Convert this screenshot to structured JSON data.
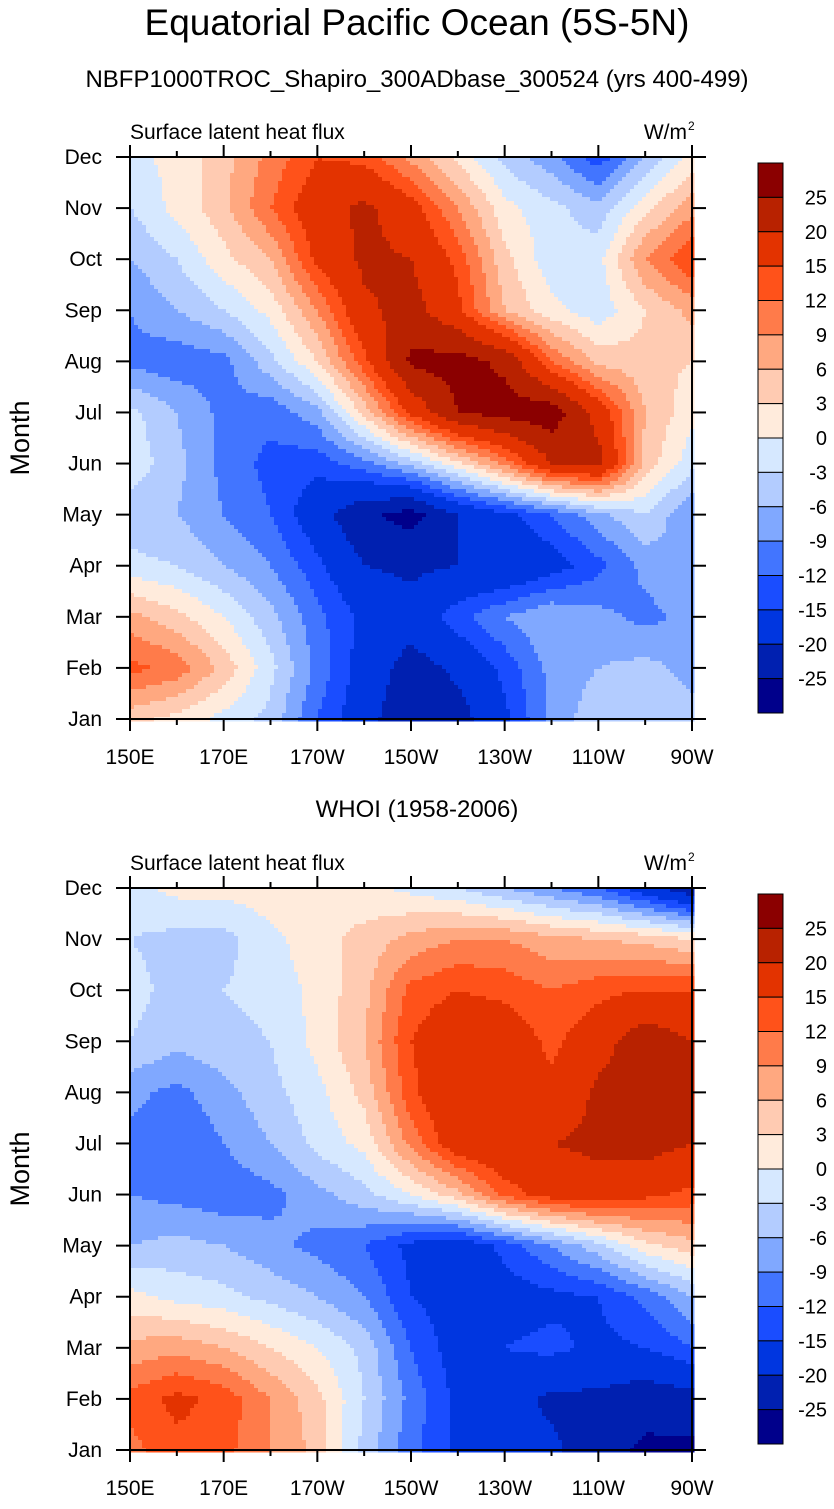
{
  "main_title": "Equatorial Pacific Ocean (5S-5N)",
  "chart_data": [
    {
      "type": "heatmap",
      "subtitle": "NBFP1000TROC_Shapiro_300ADbase_300524 (yrs 400-499)",
      "left_label": "Surface latent heat flux",
      "right_label": "W/m",
      "right_label_sup": "2",
      "ylabel": "Month",
      "xlabel": "",
      "x_ticks": [
        "150E",
        "170E",
        "170W",
        "150W",
        "130W",
        "110W",
        "90W"
      ],
      "y_ticks": [
        "Jan",
        "Feb",
        "Mar",
        "Apr",
        "May",
        "Jun",
        "Jul",
        "Aug",
        "Sep",
        "Oct",
        "Nov",
        "Dec"
      ],
      "x_lon": [
        150,
        160,
        170,
        180,
        190,
        200,
        210,
        220,
        230,
        240,
        250,
        260,
        270
      ],
      "values": [
        [
          4,
          2,
          -1,
          -4,
          -12,
          -18,
          -24,
          -22,
          -16,
          -8,
          -4,
          -3,
          -5
        ],
        [
          13,
          11,
          5,
          -2,
          -10,
          -17,
          -22,
          -19,
          -14,
          -8,
          -6,
          -5,
          -7
        ],
        [
          7,
          4,
          0,
          -5,
          -11,
          -16,
          -18,
          -13,
          -9,
          -6,
          -8,
          -10,
          -8
        ],
        [
          -2,
          -3,
          -6,
          -9,
          -14,
          -20,
          -21,
          -20,
          -20,
          -17,
          -13,
          -8,
          -6
        ],
        [
          -5,
          -6,
          -9,
          -12,
          -18,
          -24,
          -27,
          -20,
          -16,
          -12,
          -7,
          -3,
          -9
        ],
        [
          -1,
          -5,
          -10,
          -13,
          -14,
          -10,
          -5,
          2,
          10,
          20,
          22,
          5,
          -2
        ],
        [
          -2,
          -6,
          -10,
          -11,
          -7,
          4,
          16,
          25,
          27,
          28,
          18,
          6,
          1
        ],
        [
          -10,
          -11,
          -10,
          -4,
          3,
          14,
          26,
          27,
          24,
          12,
          5,
          4,
          3
        ],
        [
          -9,
          -6,
          -3,
          1,
          9,
          19,
          22,
          16,
          6,
          1,
          -2,
          3,
          7
        ],
        [
          -6,
          -3,
          2,
          6,
          16,
          21,
          20,
          14,
          4,
          -2,
          -1,
          9,
          15
        ],
        [
          -3,
          1,
          5,
          12,
          18,
          21,
          17,
          9,
          1,
          -2,
          -5,
          2,
          8
        ],
        [
          -1,
          1,
          5,
          10,
          15,
          14,
          8,
          2,
          -4,
          -8,
          -14,
          -6,
          1
        ]
      ]
    },
    {
      "type": "heatmap",
      "subtitle": "WHOI (1958-2006)",
      "left_label": "Surface latent heat flux",
      "right_label": "W/m",
      "right_label_sup": "2",
      "ylabel": "Month",
      "xlabel": "",
      "x_ticks": [
        "150E",
        "170E",
        "170W",
        "150W",
        "130W",
        "110W",
        "90W"
      ],
      "y_ticks": [
        "Jan",
        "Feb",
        "Mar",
        "Apr",
        "May",
        "Jun",
        "Jul",
        "Aug",
        "Sep",
        "Oct",
        "Nov",
        "Dec"
      ],
      "x_lon": [
        150,
        160,
        170,
        180,
        190,
        200,
        210,
        220,
        230,
        240,
        250,
        260,
        270
      ],
      "values": [
        [
          11,
          14,
          13,
          9,
          5,
          -4,
          -11,
          -16,
          -18,
          -19,
          -23,
          -26,
          -26
        ],
        [
          13,
          16,
          14,
          9,
          4,
          -3,
          -10,
          -16,
          -18,
          -21,
          -21,
          -23,
          -22
        ],
        [
          7,
          8,
          6,
          3,
          0,
          -4,
          -12,
          -17,
          -15,
          -14,
          -16,
          -15,
          -12
        ],
        [
          1,
          -1,
          -2,
          -4,
          -6,
          -9,
          -15,
          -17,
          -17,
          -16,
          -15,
          -11,
          -6
        ],
        [
          -6,
          -5,
          -6,
          -8,
          -10,
          -12,
          -16,
          -18,
          -14,
          -9,
          -4,
          2,
          5
        ],
        [
          -9,
          -10,
          -11,
          -10,
          -7,
          -4,
          0,
          5,
          13,
          17,
          18,
          16,
          14
        ],
        [
          -10,
          -12,
          -9,
          -6,
          -2,
          1,
          10,
          18,
          20,
          20,
          21,
          22,
          20
        ],
        [
          -8,
          -10,
          -7,
          -4,
          -1,
          4,
          14,
          20,
          20,
          16,
          21,
          23,
          21
        ],
        [
          -3,
          -5,
          -4,
          -3,
          1,
          6,
          15,
          19,
          18,
          14,
          18,
          23,
          20
        ],
        [
          -2,
          -4,
          -3,
          -2,
          1,
          5,
          13,
          15,
          14,
          12,
          14,
          15,
          15
        ],
        [
          -3,
          -4,
          -4,
          -1,
          2,
          4,
          7,
          9,
          9,
          7,
          6,
          5,
          3
        ],
        [
          -1,
          1,
          1,
          2,
          2,
          1,
          -1,
          -3,
          -6,
          -9,
          -12,
          -18,
          -24
        ]
      ]
    }
  ],
  "colorbar": {
    "labels": [
      "25",
      "20",
      "15",
      "12",
      "9",
      "6",
      "3",
      "0",
      "-3",
      "-6",
      "-9",
      "-12",
      "-15",
      "-20",
      "-25"
    ],
    "levels": [
      -25,
      -20,
      -15,
      -12,
      -9,
      -6,
      -3,
      0,
      3,
      6,
      9,
      12,
      15,
      20,
      25
    ],
    "colors": [
      "#00008b",
      "#0020b0",
      "#0036e0",
      "#1a4dff",
      "#4275ff",
      "#80a8ff",
      "#b3ccff",
      "#d6e8ff",
      "#ffebdc",
      "#ffcbb2",
      "#ffa880",
      "#ff7b4a",
      "#ff521a",
      "#e33300",
      "#b82200",
      "#8b0000"
    ]
  }
}
